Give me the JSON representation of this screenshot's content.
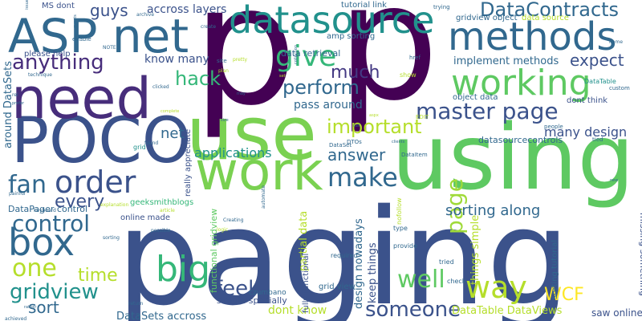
{
  "word_cloud": {
    "words": [
      {
        "text": "p",
        "color": "#440154"
      },
      {
        "text": "p",
        "color": "#440154"
      },
      {
        "text": "paging",
        "color": "#3b528b"
      },
      {
        "text": "using",
        "color": "#5ec962"
      },
      {
        "text": "use",
        "color": "#7ad151"
      },
      {
        "text": "work",
        "color": "#7ad151"
      },
      {
        "text": "POCO",
        "color": "#3b528b"
      },
      {
        "text": "need",
        "color": "#472d7b"
      },
      {
        "text": "ASP net",
        "color": "#31688e"
      },
      {
        "text": "datasource",
        "color": "#21918c"
      },
      {
        "text": "methods",
        "color": "#31688e"
      },
      {
        "text": "working",
        "color": "#5ec962"
      },
      {
        "text": "give",
        "color": "#35b779"
      },
      {
        "text": "master page",
        "color": "#3b528b"
      },
      {
        "text": "box",
        "color": "#31688e"
      },
      {
        "text": "order",
        "color": "#3b528b"
      },
      {
        "text": "fan",
        "color": "#31688e"
      },
      {
        "text": "control",
        "color": "#31688e"
      },
      {
        "text": "one",
        "color": "#b5de2b"
      },
      {
        "text": "gridview",
        "color": "#21918c"
      },
      {
        "text": "big",
        "color": "#35b779"
      },
      {
        "text": "way",
        "color": "#b5de2b"
      },
      {
        "text": "make",
        "color": "#31688e"
      },
      {
        "text": "anything",
        "color": "#472d7b"
      },
      {
        "text": "DataContracts",
        "color": "#31688e"
      },
      {
        "text": "perform",
        "color": "#31688e"
      },
      {
        "text": "much",
        "color": "#443983"
      },
      {
        "text": "hack",
        "color": "#35b779"
      },
      {
        "text": "expect",
        "color": "#3b528b"
      },
      {
        "text": "important",
        "color": "#b5de2b"
      },
      {
        "text": "page",
        "color": "#a0da39"
      },
      {
        "text": "well",
        "color": "#5ec962"
      },
      {
        "text": "someone",
        "color": "#3b528b"
      },
      {
        "text": "feel",
        "color": "#3b528b"
      },
      {
        "text": "sort",
        "color": "#31688e"
      },
      {
        "text": "time",
        "color": "#b5de2b"
      },
      {
        "text": "answer",
        "color": "#31688e"
      },
      {
        "text": "WCF",
        "color": "#fde725"
      },
      {
        "text": "every",
        "color": "#3b528b"
      },
      {
        "text": "guys",
        "color": "#3b528b"
      },
      {
        "text": "applications",
        "color": "#21918c"
      },
      {
        "text": "sorting along",
        "color": "#31688e"
      },
      {
        "text": "net",
        "color": "#31688e"
      },
      {
        "text": "many design",
        "color": "#3b528b"
      },
      {
        "text": "know many",
        "color": "#3b528b"
      },
      {
        "text": "accross layers",
        "color": "#3b528b"
      },
      {
        "text": "implement methods",
        "color": "#31688e"
      },
      {
        "text": "pass around",
        "color": "#31688e"
      },
      {
        "text": "dont think",
        "color": "#3b528b"
      },
      {
        "text": "data retrieval",
        "color": "#31688e"
      },
      {
        "text": "tutorial link",
        "color": "#31688e"
      },
      {
        "text": "gridview object",
        "color": "#31688e"
      },
      {
        "text": "data source",
        "color": "#b5de2b"
      },
      {
        "text": "object data",
        "color": "#31688e"
      },
      {
        "text": "amp sorting",
        "color": "#31688e"
      },
      {
        "text": "DataPager control",
        "color": "#31688e"
      },
      {
        "text": "around DataSets",
        "color": "#31688e"
      },
      {
        "text": "please help",
        "color": "#3b528b"
      },
      {
        "text": "MS dont",
        "color": "#3b528b"
      },
      {
        "text": "design nowadays",
        "color": "#31688e"
      },
      {
        "text": "partial data",
        "color": "#b5de2b"
      },
      {
        "text": "keep things",
        "color": "#3b528b"
      },
      {
        "text": "things simple",
        "color": "#b5de2b"
      },
      {
        "text": "sorting tutorial",
        "color": "#31688e"
      },
      {
        "text": "datasourcecontrols",
        "color": "#31688e"
      },
      {
        "text": "saw online",
        "color": "#3b528b"
      },
      {
        "text": "missing something",
        "color": "#3b528b"
      },
      {
        "text": "DataTable DataViews",
        "color": "#b5de2b"
      },
      {
        "text": "dont know",
        "color": "#b5de2b"
      },
      {
        "text": "DataSets accross",
        "color": "#31688e"
      },
      {
        "text": "simple specially",
        "color": "#3b528b"
      },
      {
        "text": "functional gridview",
        "color": "#5ec962"
      },
      {
        "text": "fully functional",
        "color": "#3b528b"
      },
      {
        "text": "really appreciate",
        "color": "#3b528b"
      },
      {
        "text": "grid view",
        "color": "#31688e"
      },
      {
        "text": "online made",
        "color": "#3b528b"
      },
      {
        "text": "geeksmithblogs",
        "color": "#35b779"
      },
      {
        "text": "czumbano",
        "color": "#31688e"
      },
      {
        "text": "required",
        "color": "#31688e"
      },
      {
        "text": "provide",
        "color": "#31688e"
      },
      {
        "text": "check",
        "color": "#31688e"
      },
      {
        "text": "tried",
        "color": "#31688e"
      },
      {
        "text": "type",
        "color": "#31688e"
      },
      {
        "text": "nofollow",
        "color": "#b5de2b"
      },
      {
        "text": "DataItem",
        "color": "#31688e"
      },
      {
        "text": "DTOs",
        "color": "#31688e"
      },
      {
        "text": "DataSet",
        "color": "#31688e"
      },
      {
        "text": "EDIT",
        "color": "#b5de2b"
      },
      {
        "text": "DataTable",
        "color": "#21918c"
      },
      {
        "text": "custom",
        "color": "#31688e"
      },
      {
        "text": "people",
        "color": "#31688e"
      },
      {
        "text": "tied",
        "color": "#31688e"
      },
      {
        "text": "name",
        "color": "#31688e"
      },
      {
        "text": "href",
        "color": "#31688e"
      },
      {
        "text": "show",
        "color": "#b5de2b"
      },
      {
        "text": "trying",
        "color": "#31688e"
      },
      {
        "text": "enable",
        "color": "#31688e"
      },
      {
        "text": "archive",
        "color": "#31688e"
      },
      {
        "text": "events",
        "color": "#31688e"
      },
      {
        "text": "issue",
        "color": "#31688e"
      },
      {
        "text": "create",
        "color": "#31688e"
      },
      {
        "text": "NOTE",
        "color": "#31688e"
      },
      {
        "text": "technique",
        "color": "#31688e"
      },
      {
        "text": "rel",
        "color": "#31688e"
      },
      {
        "text": "prefer",
        "color": "#31688e"
      },
      {
        "text": "site",
        "color": "#31688e"
      },
      {
        "text": "plan",
        "color": "#b5de2b"
      },
      {
        "text": "pretty",
        "color": "#b5de2b"
      },
      {
        "text": "clicked",
        "color": "#31688e"
      },
      {
        "text": "may",
        "color": "#31688e"
      },
      {
        "text": "set",
        "color": "#b5de2b"
      },
      {
        "text": "complete",
        "color": "#b5de2b"
      },
      {
        "text": "call",
        "color": "#31688e"
      },
      {
        "text": "aspx",
        "color": "#b5de2b"
      },
      {
        "text": "clients",
        "color": "#31688e"
      },
      {
        "text": "collection",
        "color": "#31688e"
      },
      {
        "text": "size",
        "color": "#31688e"
      },
      {
        "text": "found",
        "color": "#31688e"
      },
      {
        "text": "grid",
        "color": "#21918c"
      },
      {
        "text": "article",
        "color": "#b5de2b"
      },
      {
        "text": "keyboard",
        "color": "#31688e"
      },
      {
        "text": "painful",
        "color": "#31688e"
      },
      {
        "text": "explanation",
        "color": "#b5de2b"
      },
      {
        "text": "sorting",
        "color": "#31688e"
      },
      {
        "text": "possible",
        "color": "#31688e"
      },
      {
        "text": "Creating",
        "color": "#31688e"
      },
      {
        "text": "logic",
        "color": "#b5de2b"
      },
      {
        "text": "automate",
        "color": "#31688e"
      },
      {
        "text": "new",
        "color": "#31688e"
      },
      {
        "text": "return",
        "color": "#31688e"
      },
      {
        "text": "rather",
        "color": "#31688e"
      },
      {
        "text": "achieved",
        "color": "#31688e"
      }
    ]
  }
}
